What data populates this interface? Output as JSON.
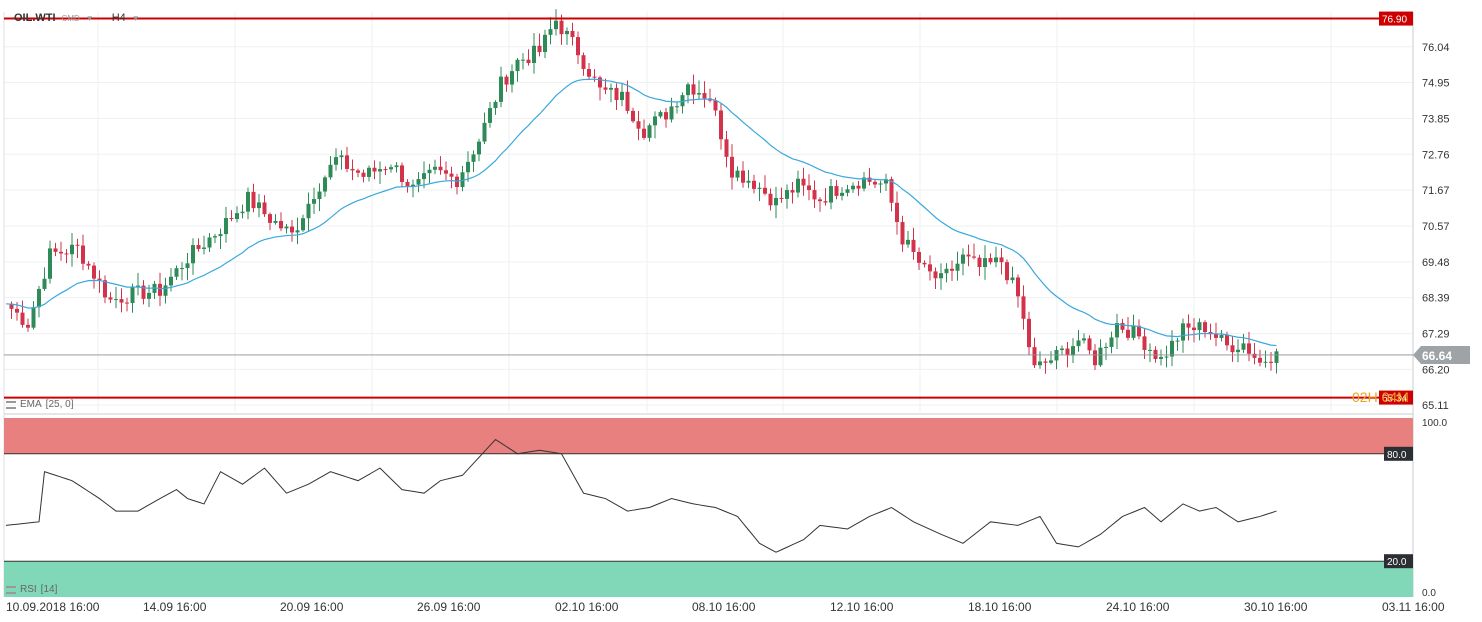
{
  "header": {
    "symbol": "OIL.WTI",
    "market": "CMD",
    "timeframe": "H4"
  },
  "indicators": {
    "ema_label": "EMA",
    "ema_params": "[25, 0]",
    "rsi_label": "RSI",
    "rsi_params": "[14]"
  },
  "countdown": "02H 04M",
  "colors": {
    "bull": "#2e8b57",
    "bear": "#d2334a",
    "ema": "#3aa8dc",
    "level": "#cc0000",
    "rsi_overbought": "#e88080",
    "rsi_oversold": "#80d8b8",
    "price_tag": "#9ea3a7"
  },
  "chart_data": [
    {
      "type": "candlestick",
      "title": "OIL.WTI H4",
      "ylim": [
        64.9,
        77.1
      ],
      "y_ticks": [
        "76.04",
        "74.95",
        "73.85",
        "72.76",
        "71.67",
        "70.57",
        "69.48",
        "68.39",
        "67.29",
        "66.20",
        "65.11"
      ],
      "x_ticks": [
        "10.09.2018  16:00",
        "14.09  16:00",
        "20.09  16:00",
        "26.09  16:00",
        "02.10  16:00",
        "08.10  16:00",
        "12.10  16:00",
        "18.10  16:00",
        "24.10  16:00",
        "30.10  16:00",
        "03.11  16:00"
      ],
      "levels": [
        {
          "label": "76.90",
          "value": 76.9
        },
        {
          "label": "65.34",
          "value": 65.34
        }
      ],
      "last_price": {
        "label": "66.64",
        "value": 66.64
      },
      "anchors": [
        [
          0,
          68.2
        ],
        [
          4,
          67.6
        ],
        [
          8,
          69.7
        ],
        [
          13,
          69.9
        ],
        [
          19,
          68.3
        ],
        [
          23,
          68.5
        ],
        [
          28,
          68.6
        ],
        [
          33,
          69.6
        ],
        [
          39,
          70.5
        ],
        [
          44,
          71.4
        ],
        [
          48,
          70.8
        ],
        [
          52,
          70.3
        ],
        [
          56,
          71.6
        ],
        [
          60,
          72.6
        ],
        [
          65,
          72.1
        ],
        [
          70,
          72.5
        ],
        [
          74,
          71.7
        ],
        [
          78,
          72.2
        ],
        [
          82,
          72.0
        ],
        [
          86,
          73.2
        ],
        [
          90,
          74.9
        ],
        [
          93,
          75.6
        ],
        [
          97,
          75.9
        ],
        [
          100,
          76.85
        ],
        [
          104,
          75.9
        ],
        [
          108,
          74.7
        ],
        [
          112,
          74.5
        ],
        [
          116,
          73.5
        ],
        [
          120,
          74.0
        ],
        [
          124,
          74.9
        ],
        [
          128,
          74.5
        ],
        [
          132,
          72.3
        ],
        [
          136,
          71.9
        ],
        [
          140,
          71.3
        ],
        [
          144,
          71.8
        ],
        [
          148,
          71.4
        ],
        [
          152,
          71.8
        ],
        [
          156,
          72.0
        ],
        [
          160,
          71.8
        ],
        [
          163,
          70.2
        ],
        [
          167,
          69.2
        ],
        [
          170,
          68.9
        ],
        [
          174,
          69.6
        ],
        [
          177,
          69.3
        ],
        [
          181,
          69.5
        ],
        [
          184,
          68.4
        ],
        [
          187,
          66.2
        ],
        [
          191,
          66.6
        ],
        [
          195,
          67.1
        ],
        [
          198,
          66.5
        ],
        [
          202,
          67.6
        ],
        [
          206,
          67.2
        ],
        [
          210,
          66.5
        ],
        [
          214,
          67.4
        ],
        [
          218,
          67.5
        ],
        [
          222,
          66.9
        ],
        [
          225,
          67.0
        ],
        [
          228,
          66.4
        ],
        [
          231,
          66.75
        ]
      ],
      "ema_period": 25
    },
    {
      "type": "line",
      "title": "RSI [14]",
      "ylim": [
        0,
        100
      ],
      "y_ticks": [
        "100.0",
        "0.0"
      ],
      "levels": [
        {
          "label": "80.0",
          "value": 80
        },
        {
          "label": "20.0",
          "value": 20
        }
      ],
      "anchors": [
        [
          0,
          40
        ],
        [
          6,
          42
        ],
        [
          7,
          70
        ],
        [
          12,
          65
        ],
        [
          17,
          55
        ],
        [
          20,
          48
        ],
        [
          24,
          48
        ],
        [
          28,
          55
        ],
        [
          31,
          60
        ],
        [
          33,
          55
        ],
        [
          36,
          52
        ],
        [
          39,
          70
        ],
        [
          43,
          63
        ],
        [
          47,
          72
        ],
        [
          51,
          58
        ],
        [
          55,
          63
        ],
        [
          59,
          70
        ],
        [
          64,
          65
        ],
        [
          68,
          72
        ],
        [
          72,
          60
        ],
        [
          76,
          58
        ],
        [
          79,
          65
        ],
        [
          83,
          68
        ],
        [
          86,
          78
        ],
        [
          89,
          88
        ],
        [
          93,
          80
        ],
        [
          97,
          82
        ],
        [
          101,
          80
        ],
        [
          105,
          58
        ],
        [
          109,
          55
        ],
        [
          113,
          48
        ],
        [
          117,
          50
        ],
        [
          121,
          55
        ],
        [
          125,
          52
        ],
        [
          129,
          50
        ],
        [
          133,
          45
        ],
        [
          137,
          30
        ],
        [
          140,
          25
        ],
        [
          145,
          32
        ],
        [
          148,
          40
        ],
        [
          153,
          38
        ],
        [
          157,
          45
        ],
        [
          161,
          50
        ],
        [
          165,
          42
        ],
        [
          170,
          35
        ],
        [
          174,
          30
        ],
        [
          179,
          42
        ],
        [
          184,
          40
        ],
        [
          188,
          45
        ],
        [
          191,
          30
        ],
        [
          195,
          28
        ],
        [
          199,
          35
        ],
        [
          203,
          45
        ],
        [
          207,
          50
        ],
        [
          210,
          42
        ],
        [
          214,
          52
        ],
        [
          217,
          48
        ],
        [
          220,
          50
        ],
        [
          224,
          42
        ],
        [
          228,
          45
        ],
        [
          231,
          48
        ]
      ]
    }
  ]
}
